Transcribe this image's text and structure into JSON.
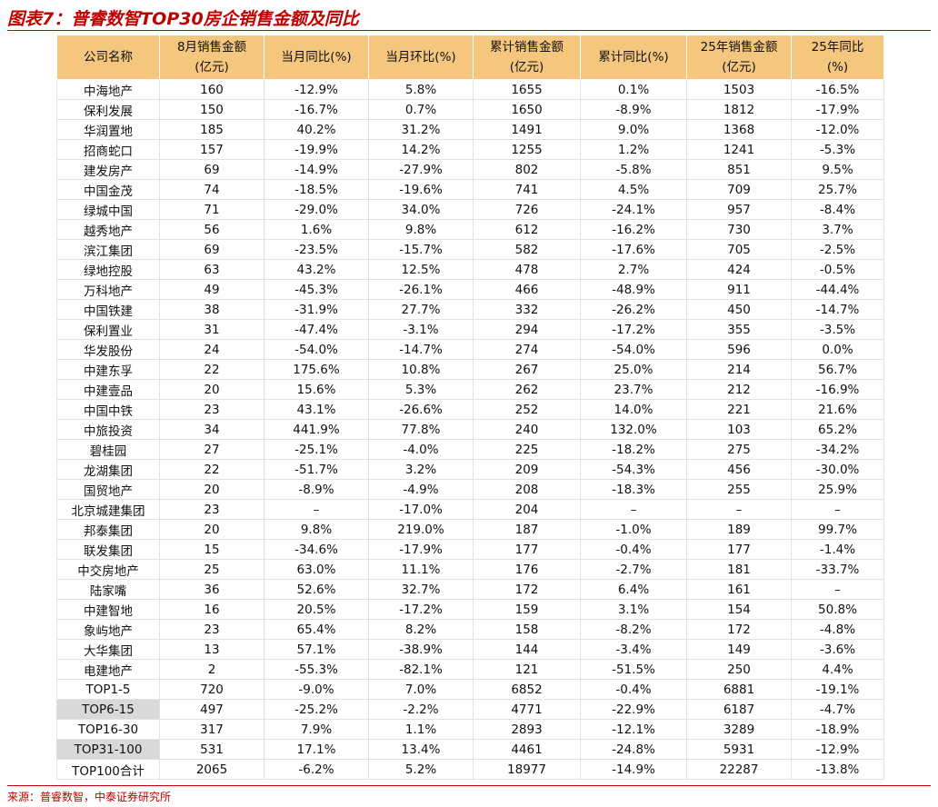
{
  "title": "图表7：普睿数智TOP30房企销售金额及同比",
  "source": "来源：普睿数智，中泰证券研究所",
  "table": {
    "header": [
      [
        "公司名称"
      ],
      [
        "8月销售金额",
        "(亿元)"
      ],
      [
        "当月同比(%)"
      ],
      [
        "当月环比(%)"
      ],
      [
        "累计销售金额",
        "(亿元)"
      ],
      [
        "累计同比(%)"
      ],
      [
        "25年销售金额",
        "(亿元)"
      ],
      [
        "25年同比",
        "(%)"
      ]
    ],
    "rows": [
      [
        "中海地产",
        160,
        {
          "value": -12.9,
          "label": "-12.9%"
        },
        {
          "value": 5.8,
          "label": "5.8%"
        },
        1655,
        {
          "value": 0.1,
          "label": "0.1%"
        },
        1503,
        {
          "value": -16.5,
          "label": "-16.5%"
        }
      ],
      [
        "保利发展",
        150,
        {
          "value": -16.7,
          "label": "-16.7%"
        },
        {
          "value": 0.7,
          "label": "0.7%"
        },
        1650,
        {
          "value": -8.9,
          "label": "-8.9%"
        },
        1812,
        {
          "value": -17.9,
          "label": "-17.9%"
        }
      ],
      [
        "华润置地",
        185,
        {
          "value": 40.2,
          "label": "40.2%"
        },
        {
          "value": 31.2,
          "label": "31.2%"
        },
        1491,
        {
          "value": 9.0,
          "label": "9.0%"
        },
        1368,
        {
          "value": -12.0,
          "label": "-12.0%"
        }
      ],
      [
        "招商蛇口",
        157,
        {
          "value": -19.9,
          "label": "-19.9%"
        },
        {
          "value": 14.2,
          "label": "14.2%"
        },
        1255,
        {
          "value": 1.2,
          "label": "1.2%"
        },
        1241,
        {
          "value": -5.3,
          "label": "-5.3%"
        }
      ],
      [
        "建发房产",
        69,
        {
          "value": -14.9,
          "label": "-14.9%"
        },
        {
          "value": -27.9,
          "label": "-27.9%"
        },
        802,
        {
          "value": -5.8,
          "label": "-5.8%"
        },
        851,
        {
          "value": 9.5,
          "label": "9.5%"
        }
      ],
      [
        "中国金茂",
        74,
        {
          "value": -18.5,
          "label": "-18.5%"
        },
        {
          "value": -19.6,
          "label": "-19.6%"
        },
        741,
        {
          "value": 4.5,
          "label": "4.5%"
        },
        709,
        {
          "value": 25.7,
          "label": "25.7%"
        }
      ],
      [
        "绿城中国",
        71,
        {
          "value": -29.0,
          "label": "-29.0%"
        },
        {
          "value": 34.0,
          "label": "34.0%"
        },
        726,
        {
          "value": -24.1,
          "label": "-24.1%"
        },
        957,
        {
          "value": -8.4,
          "label": "-8.4%"
        }
      ],
      [
        "越秀地产",
        56,
        {
          "value": 1.6,
          "label": "1.6%"
        },
        {
          "value": 9.8,
          "label": "9.8%"
        },
        612,
        {
          "value": -16.2,
          "label": "-16.2%"
        },
        730,
        {
          "value": 3.7,
          "label": "3.7%"
        }
      ],
      [
        "滨江集团",
        69,
        {
          "value": -23.5,
          "label": "-23.5%"
        },
        {
          "value": -15.7,
          "label": "-15.7%"
        },
        582,
        {
          "value": -17.6,
          "label": "-17.6%"
        },
        705,
        {
          "value": -2.5,
          "label": "-2.5%"
        }
      ],
      [
        "绿地控股",
        63,
        {
          "value": 43.2,
          "label": "43.2%"
        },
        {
          "value": 12.5,
          "label": "12.5%"
        },
        478,
        {
          "value": 2.7,
          "label": "2.7%"
        },
        424,
        {
          "value": -0.5,
          "label": "-0.5%"
        }
      ],
      [
        "万科地产",
        49,
        {
          "value": -45.3,
          "label": "-45.3%"
        },
        {
          "value": -26.1,
          "label": "-26.1%"
        },
        466,
        {
          "value": -48.9,
          "label": "-48.9%"
        },
        911,
        {
          "value": -44.4,
          "label": "-44.4%"
        }
      ],
      [
        "中国铁建",
        38,
        {
          "value": -31.9,
          "label": "-31.9%"
        },
        {
          "value": 27.7,
          "label": "27.7%"
        },
        332,
        {
          "value": -26.2,
          "label": "-26.2%"
        },
        450,
        {
          "value": -14.7,
          "label": "-14.7%"
        }
      ],
      [
        "保利置业",
        31,
        {
          "value": -47.4,
          "label": "-47.4%"
        },
        {
          "value": -3.1,
          "label": "-3.1%"
        },
        294,
        {
          "value": -17.2,
          "label": "-17.2%"
        },
        355,
        {
          "value": -3.5,
          "label": "-3.5%"
        }
      ],
      [
        "华发股份",
        24,
        {
          "value": -54.0,
          "label": "-54.0%"
        },
        {
          "value": -14.7,
          "label": "-14.7%"
        },
        274,
        {
          "value": -54.0,
          "label": "-54.0%"
        },
        596,
        {
          "value": 0.0,
          "label": "0.0%"
        }
      ],
      [
        "中建东孚",
        22,
        {
          "value": 175.6,
          "label": "175.6%"
        },
        {
          "value": 10.8,
          "label": "10.8%"
        },
        267,
        {
          "value": 25.0,
          "label": "25.0%"
        },
        214,
        {
          "value": 56.7,
          "label": "56.7%"
        }
      ],
      [
        "中建壹品",
        20,
        {
          "value": 15.6,
          "label": "15.6%"
        },
        {
          "value": 5.3,
          "label": "5.3%"
        },
        262,
        {
          "value": 23.7,
          "label": "23.7%"
        },
        212,
        {
          "value": -16.9,
          "label": "-16.9%"
        }
      ],
      [
        "中国中铁",
        23,
        {
          "value": 43.1,
          "label": "43.1%"
        },
        {
          "value": -26.6,
          "label": "-26.6%"
        },
        252,
        {
          "value": 14.0,
          "label": "14.0%"
        },
        221,
        {
          "value": 21.6,
          "label": "21.6%"
        }
      ],
      [
        "中旅投资",
        34,
        {
          "value": 441.9,
          "label": "441.9%"
        },
        {
          "value": 77.8,
          "label": "77.8%"
        },
        240,
        {
          "value": 132.0,
          "label": "132.0%"
        },
        103,
        {
          "value": 65.2,
          "label": "65.2%"
        }
      ],
      [
        "碧桂园",
        27,
        {
          "value": -25.1,
          "label": "-25.1%"
        },
        {
          "value": -4.0,
          "label": "-4.0%"
        },
        225,
        {
          "value": -18.2,
          "label": "-18.2%"
        },
        275,
        {
          "value": -34.2,
          "label": "-34.2%"
        }
      ],
      [
        "龙湖集团",
        22,
        {
          "value": -51.7,
          "label": "-51.7%"
        },
        {
          "value": 3.2,
          "label": "3.2%"
        },
        209,
        {
          "value": -54.3,
          "label": "-54.3%"
        },
        456,
        {
          "value": -30.0,
          "label": "-30.0%"
        }
      ],
      [
        "国贸地产",
        20,
        {
          "value": -8.9,
          "label": "-8.9%"
        },
        {
          "value": -4.9,
          "label": "-4.9%"
        },
        208,
        {
          "value": -18.3,
          "label": "-18.3%"
        },
        255,
        {
          "value": 25.9,
          "label": "25.9%"
        }
      ],
      [
        "北京城建集团",
        23,
        "–",
        {
          "value": -17.0,
          "label": "-17.0%"
        },
        204,
        "–",
        "–",
        "–"
      ],
      [
        "邦泰集团",
        20,
        {
          "value": 9.8,
          "label": "9.8%"
        },
        {
          "value": 219.0,
          "label": "219.0%"
        },
        187,
        {
          "value": -1.0,
          "label": "-1.0%"
        },
        189,
        {
          "value": 99.7,
          "label": "99.7%"
        }
      ],
      [
        "联发集团",
        15,
        {
          "value": -34.6,
          "label": "-34.6%"
        },
        {
          "value": -17.9,
          "label": "-17.9%"
        },
        177,
        {
          "value": -0.4,
          "label": "-0.4%"
        },
        177,
        {
          "value": -1.4,
          "label": "-1.4%"
        }
      ],
      [
        "中交房地产",
        25,
        {
          "value": 63.0,
          "label": "63.0%"
        },
        {
          "value": 11.1,
          "label": "11.1%"
        },
        176,
        {
          "value": -2.7,
          "label": "-2.7%"
        },
        181,
        {
          "value": -33.7,
          "label": "-33.7%"
        }
      ],
      [
        "陆家嘴",
        36,
        {
          "value": 52.6,
          "label": "52.6%"
        },
        {
          "value": 32.7,
          "label": "32.7%"
        },
        172,
        {
          "value": 6.4,
          "label": "6.4%"
        },
        161,
        "–"
      ],
      [
        "中建智地",
        16,
        {
          "value": 20.5,
          "label": "20.5%"
        },
        {
          "value": -17.2,
          "label": "-17.2%"
        },
        159,
        {
          "value": 3.1,
          "label": "3.1%"
        },
        154,
        {
          "value": 50.8,
          "label": "50.8%"
        }
      ],
      [
        "象屿地产",
        23,
        {
          "value": 65.4,
          "label": "65.4%"
        },
        {
          "value": 8.2,
          "label": "8.2%"
        },
        158,
        {
          "value": -8.2,
          "label": "-8.2%"
        },
        172,
        {
          "value": -4.8,
          "label": "-4.8%"
        }
      ],
      [
        "大华集团",
        13,
        {
          "value": 57.1,
          "label": "57.1%"
        },
        {
          "value": -38.9,
          "label": "-38.9%"
        },
        144,
        {
          "value": -3.4,
          "label": "-3.4%"
        },
        149,
        {
          "value": -3.6,
          "label": "-3.6%"
        }
      ],
      [
        "电建地产",
        2,
        {
          "value": -55.3,
          "label": "-55.3%"
        },
        {
          "value": -82.1,
          "label": "-82.1%"
        },
        121,
        {
          "value": -51.5,
          "label": "-51.5%"
        },
        250,
        {
          "value": 4.4,
          "label": "4.4%"
        }
      ],
      [
        "TOP1-5",
        720,
        {
          "value": -9.0,
          "label": "-9.0%"
        },
        {
          "value": 7.0,
          "label": "7.0%"
        },
        6852,
        {
          "value": -0.4,
          "label": "-0.4%"
        },
        6881,
        {
          "value": -19.1,
          "label": "-19.1%"
        }
      ],
      [
        "TOP6-15",
        497,
        {
          "value": -25.2,
          "label": "-25.2%"
        },
        {
          "value": -2.2,
          "label": "-2.2%"
        },
        4771,
        {
          "value": -22.9,
          "label": "-22.9%"
        },
        6187,
        {
          "value": -4.7,
          "label": "-4.7%"
        }
      ],
      [
        "TOP16-30",
        317,
        {
          "value": 7.9,
          "label": "7.9%"
        },
        {
          "value": 1.1,
          "label": "1.1%"
        },
        2893,
        {
          "value": -12.1,
          "label": "-12.1%"
        },
        3289,
        {
          "value": -18.9,
          "label": "-18.9%"
        }
      ],
      [
        "TOP31-100",
        531,
        {
          "value": 17.1,
          "label": "17.1%"
        },
        {
          "value": 13.4,
          "label": "13.4%"
        },
        4461,
        {
          "value": -24.8,
          "label": "-24.8%"
        },
        5931,
        {
          "value": -12.9,
          "label": "-12.9%"
        }
      ],
      [
        "TOP100合计",
        2065,
        {
          "value": -6.2,
          "label": "-6.2%"
        },
        {
          "value": 5.2,
          "label": "5.2%"
        },
        18977,
        {
          "value": -14.9,
          "label": "-14.9%"
        },
        22287,
        {
          "value": -13.8,
          "label": "-13.8%"
        }
      ]
    ]
  }
}
